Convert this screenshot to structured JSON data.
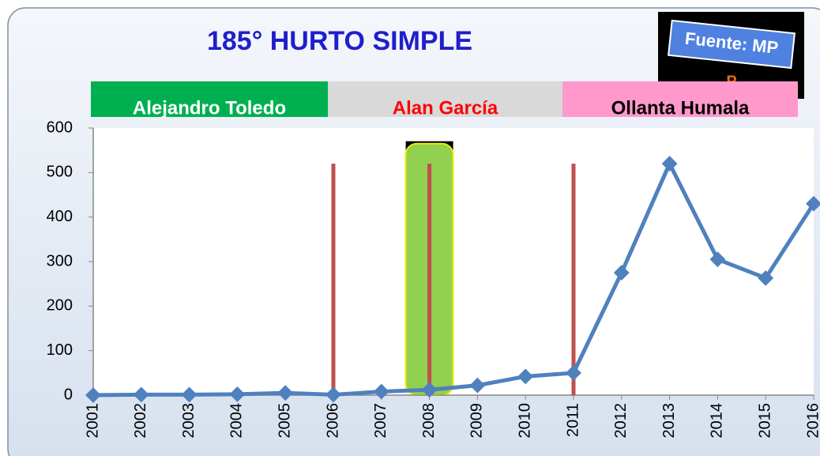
{
  "chart_data": {
    "type": "line",
    "title": "185° HURTO SIMPLE",
    "source": {
      "text": "Fuente: MP",
      "extra": "P"
    },
    "periods": [
      {
        "label": "Alejandro Toledo",
        "color": "#00b050",
        "text_color": "#ffffff"
      },
      {
        "label": "Alan García",
        "color": "#d9d9d9",
        "text_color": "#ff0000"
      },
      {
        "label": "Ollanta Humala",
        "color": "#ff99cc",
        "text_color": "#000000"
      }
    ],
    "x": [
      2001,
      2002,
      2003,
      2004,
      2005,
      2006,
      2007,
      2008,
      2009,
      2010,
      2011,
      2012,
      2013,
      2014,
      2015,
      2016
    ],
    "series": [
      {
        "name": "185° HURTO SIMPLE",
        "color": "#4f81bd",
        "values": [
          0,
          1,
          1,
          2,
          5,
          1,
          8,
          12,
          22,
          42,
          50,
          275,
          520,
          305,
          263,
          430
        ]
      }
    ],
    "vlines": {
      "x": [
        2006,
        2008,
        2011
      ],
      "top": 520,
      "color": "#c0504d"
    },
    "highlight": {
      "x": 2008,
      "top": 565,
      "color": "#92d050"
    },
    "xlim": [
      2001,
      2016
    ],
    "xticks": [
      2001,
      2002,
      2003,
      2004,
      2005,
      2006,
      2007,
      2008,
      2009,
      2010,
      2011,
      2012,
      2013,
      2014,
      2015,
      2016
    ],
    "ylim": [
      0,
      600
    ],
    "yticks": [
      0,
      100,
      200,
      300,
      400,
      500,
      600
    ],
    "grid": false
  }
}
